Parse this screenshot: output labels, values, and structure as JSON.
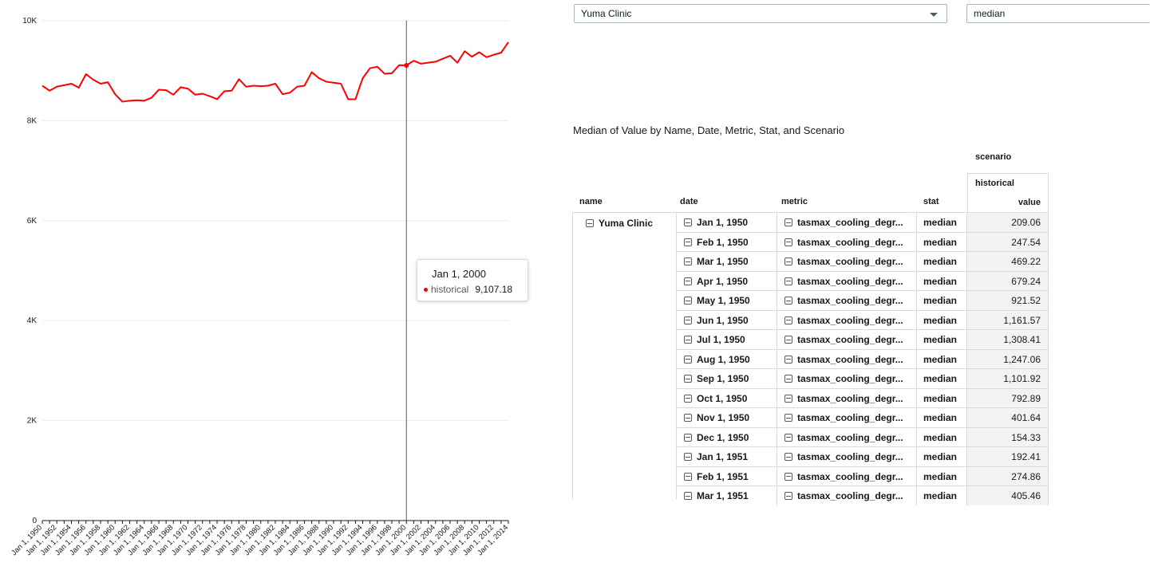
{
  "chart_data": {
    "type": "line",
    "title": "",
    "xlabel": "",
    "ylabel": "",
    "ylim": [
      0,
      10000
    ],
    "y_ticks": [
      "0",
      "2K",
      "4K",
      "6K",
      "8K",
      "10K"
    ],
    "y_tick_values": [
      0,
      2000,
      4000,
      6000,
      8000,
      10000
    ],
    "x_tick_labels": [
      "Jan 1, 1950",
      "Jan 1, 1952",
      "Jan 1, 1954",
      "Jan 1, 1956",
      "Jan 1, 1958",
      "Jan 1, 1960",
      "Jan 1, 1962",
      "Jan 1, 1964",
      "Jan 1, 1966",
      "Jan 1, 1968",
      "Jan 1, 1970",
      "Jan 1, 1972",
      "Jan 1, 1974",
      "Jan 1, 1976",
      "Jan 1, 1978",
      "Jan 1, 1980",
      "Jan 1, 1982",
      "Jan 1, 1984",
      "Jan 1, 1986",
      "Jan 1, 1988",
      "Jan 1, 1990",
      "Jan 1, 1992",
      "Jan 1, 1994",
      "Jan 1, 1996",
      "Jan 1, 1998",
      "Jan 1, 2000",
      "Jan 1, 2002",
      "Jan 1, 2004",
      "Jan 1, 2006",
      "Jan 1, 2008",
      "Jan 1, 2010",
      "Jan 1, 2012",
      "Jan 1, 2014"
    ],
    "series": [
      {
        "name": "historical",
        "color": "#ff0000",
        "x": [
          1950,
          1951,
          1952,
          1953,
          1954,
          1955,
          1956,
          1957,
          1958,
          1959,
          1960,
          1961,
          1962,
          1963,
          1964,
          1965,
          1966,
          1967,
          1968,
          1969,
          1970,
          1971,
          1972,
          1973,
          1974,
          1975,
          1976,
          1977,
          1978,
          1979,
          1980,
          1981,
          1982,
          1983,
          1984,
          1985,
          1986,
          1987,
          1988,
          1989,
          1990,
          1991,
          1992,
          1993,
          1994,
          1995,
          1996,
          1997,
          1998,
          1999,
          2000,
          2001,
          2002,
          2003,
          2004,
          2005,
          2006,
          2007,
          2008,
          2009,
          2010,
          2011,
          2012,
          2013,
          2014
        ],
        "values": [
          8700,
          8600,
          8680,
          8710,
          8740,
          8660,
          8930,
          8820,
          8740,
          8770,
          8530,
          8380,
          8400,
          8410,
          8400,
          8460,
          8620,
          8610,
          8520,
          8670,
          8640,
          8520,
          8540,
          8490,
          8430,
          8590,
          8600,
          8830,
          8680,
          8700,
          8690,
          8700,
          8740,
          8530,
          8560,
          8680,
          8700,
          8970,
          8850,
          8780,
          8760,
          8740,
          8430,
          8430,
          8850,
          9050,
          9080,
          8940,
          8950,
          9110,
          9107.18,
          9200,
          9140,
          9160,
          9180,
          9240,
          9300,
          9160,
          9390,
          9280,
          9370,
          9270,
          9320,
          9360,
          9570
        ]
      }
    ],
    "cursor_x": 2000
  },
  "tooltip": {
    "date": "Jan 1, 2000",
    "series": "historical",
    "value": "9,107.18"
  },
  "controls": {
    "name_select": "Yuma Clinic",
    "stat_select": "median"
  },
  "table": {
    "title": "Median of Value by Name, Date, Metric, Stat, and Scenario",
    "scenario_header": "scenario",
    "scenario_value": "historical",
    "value_header": "value",
    "headers": {
      "name": "name",
      "date": "date",
      "metric": "metric",
      "stat": "stat"
    },
    "name_value": "Yuma Clinic",
    "rows": [
      {
        "date": "Jan 1, 1950",
        "metric": "tasmax_cooling_degr...",
        "stat": "median",
        "value": "209.06"
      },
      {
        "date": "Feb 1, 1950",
        "metric": "tasmax_cooling_degr...",
        "stat": "median",
        "value": "247.54"
      },
      {
        "date": "Mar 1, 1950",
        "metric": "tasmax_cooling_degr...",
        "stat": "median",
        "value": "469.22"
      },
      {
        "date": "Apr 1, 1950",
        "metric": "tasmax_cooling_degr...",
        "stat": "median",
        "value": "679.24"
      },
      {
        "date": "May 1, 1950",
        "metric": "tasmax_cooling_degr...",
        "stat": "median",
        "value": "921.52"
      },
      {
        "date": "Jun 1, 1950",
        "metric": "tasmax_cooling_degr...",
        "stat": "median",
        "value": "1,161.57"
      },
      {
        "date": "Jul 1, 1950",
        "metric": "tasmax_cooling_degr...",
        "stat": "median",
        "value": "1,308.41"
      },
      {
        "date": "Aug 1, 1950",
        "metric": "tasmax_cooling_degr...",
        "stat": "median",
        "value": "1,247.06"
      },
      {
        "date": "Sep 1, 1950",
        "metric": "tasmax_cooling_degr...",
        "stat": "median",
        "value": "1,101.92"
      },
      {
        "date": "Oct 1, 1950",
        "metric": "tasmax_cooling_degr...",
        "stat": "median",
        "value": "792.89"
      },
      {
        "date": "Nov 1, 1950",
        "metric": "tasmax_cooling_degr...",
        "stat": "median",
        "value": "401.64"
      },
      {
        "date": "Dec 1, 1950",
        "metric": "tasmax_cooling_degr...",
        "stat": "median",
        "value": "154.33"
      },
      {
        "date": "Jan 1, 1951",
        "metric": "tasmax_cooling_degr...",
        "stat": "median",
        "value": "192.41"
      },
      {
        "date": "Feb 1, 1951",
        "metric": "tasmax_cooling_degr...",
        "stat": "median",
        "value": "274.86"
      },
      {
        "date": "Mar 1, 1951",
        "metric": "tasmax_cooling_degr...",
        "stat": "median",
        "value": "405.46"
      }
    ]
  }
}
